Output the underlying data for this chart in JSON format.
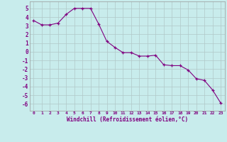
{
  "x_values": [
    0,
    1,
    2,
    3,
    4,
    5,
    6,
    7,
    8,
    9,
    10,
    11,
    12,
    13,
    14,
    15,
    16,
    17,
    18,
    19,
    20,
    21,
    22,
    23
  ],
  "y_values": [
    3.6,
    3.1,
    3.1,
    3.3,
    4.3,
    5.0,
    5.0,
    5.0,
    3.2,
    1.2,
    0.5,
    -0.1,
    -0.1,
    -0.5,
    -0.5,
    -0.4,
    -1.5,
    -1.6,
    -1.6,
    -2.1,
    -3.1,
    -3.3,
    -4.4,
    -5.9
  ],
  "line_color": "#800080",
  "marker": "+",
  "marker_color": "#800080",
  "bg_color": "#c8ecec",
  "grid_color": "#b0c8c8",
  "xlabel": "Windchill (Refroidissement éolien,°C)",
  "xlim": [
    -0.5,
    23.5
  ],
  "ylim": [
    -6.8,
    5.8
  ],
  "xticks": [
    0,
    1,
    2,
    3,
    4,
    5,
    6,
    7,
    8,
    9,
    10,
    11,
    12,
    13,
    14,
    15,
    16,
    17,
    18,
    19,
    20,
    21,
    22,
    23
  ],
  "yticks": [
    -6,
    -5,
    -4,
    -3,
    -2,
    -1,
    0,
    1,
    2,
    3,
    4,
    5
  ],
  "tick_label_color": "#800080"
}
